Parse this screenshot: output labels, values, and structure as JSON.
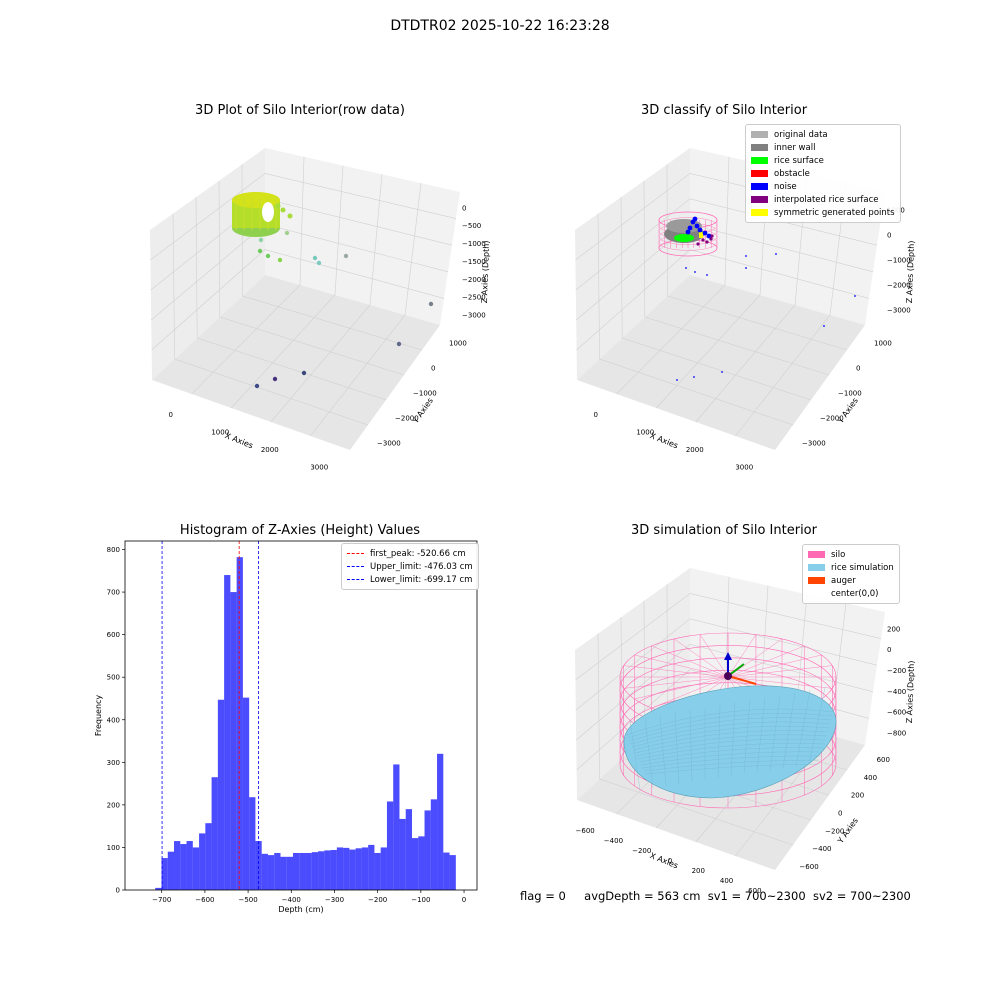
{
  "suptitle": "DTDTR02 2025-10-22 16:23:28",
  "footer": {
    "flag": "flag = 0",
    "avg_depth": "avgDepth = 563 cm",
    "sv1": "sv1 = 700~2300",
    "sv2": "sv2 = 700~2300"
  },
  "chart_data": [
    {
      "type": "scatter",
      "title": "3D Plot of Silo Interior(row data)",
      "xlabel": "X Axies",
      "ylabel": "Y Axies",
      "zlabel": "Z Axies (Depth)",
      "x_ticks": [
        "0",
        "1000",
        "2000",
        "3000"
      ],
      "y_ticks": [
        "1000",
        "0",
        "−1000",
        "−2000",
        "−3000"
      ],
      "z_ticks": [
        "0",
        "−500",
        "−1000",
        "−1500",
        "−2000",
        "−2500",
        "−3000"
      ],
      "colormap": "viridis",
      "cluster_colors": [
        "#d4e21a",
        "#b5de2b",
        "#7ad151",
        "#ffffff"
      ],
      "outlier_points": [
        {
          "color": "#a2d08d"
        },
        {
          "color": "#8fd3a6"
        },
        {
          "color": "#6ccd5a"
        },
        {
          "color": "#6ccd5a"
        },
        {
          "color": "#86d549"
        },
        {
          "color": "#77c9bc"
        },
        {
          "color": "#7fc9c0"
        },
        {
          "color": "#9aa9a4"
        },
        {
          "color": "#78808f"
        },
        {
          "color": "#5d6a8a"
        },
        {
          "color": "#3b4a7c"
        },
        {
          "color": "#46327e"
        },
        {
          "color": "#3e4a89"
        }
      ]
    },
    {
      "type": "scatter",
      "title": "3D classify of Silo Interior",
      "xlabel": "X Axies",
      "ylabel": "Y Axies",
      "zlabel": "Z Axies (Depth)",
      "x_ticks": [
        "0",
        "1000",
        "2000",
        "3000"
      ],
      "y_ticks": [
        "1000",
        "0",
        "−1000",
        "−2000",
        "−3000"
      ],
      "z_ticks": [
        "1000",
        "0",
        "−1000",
        "−2000",
        "−3000"
      ],
      "legend": [
        {
          "label": "original data",
          "color": "#b0b0b0"
        },
        {
          "label": "inner wall",
          "color": "#808080"
        },
        {
          "label": "rice surface",
          "color": "#00ff00"
        },
        {
          "label": "obstacle",
          "color": "#ff0000"
        },
        {
          "label": "noise",
          "color": "#0000ff"
        },
        {
          "label": "interpolated rice surface",
          "color": "#800080"
        },
        {
          "label": "symmetric generated points",
          "color": "#ffff00"
        }
      ],
      "legend_placement": "upper right",
      "shell_color": "#ff69b4"
    },
    {
      "type": "bar",
      "title": "Histogram of Z-Axies (Height) Values",
      "xlabel": "Depth (cm)",
      "ylabel": "Frequency",
      "xlim": [
        -785,
        30
      ],
      "ylim": [
        0,
        820
      ],
      "x_ticks": [
        -700,
        -600,
        -500,
        -400,
        -300,
        -200,
        -100,
        0
      ],
      "y_ticks": [
        0,
        100,
        200,
        300,
        400,
        500,
        600,
        700,
        800
      ],
      "bin_start": -715,
      "bin_width": 14.5,
      "bar_color": "#0000ff",
      "values": [
        5,
        75,
        90,
        115,
        108,
        115,
        100,
        133,
        157,
        265,
        447,
        740,
        700,
        782,
        452,
        218,
        115,
        85,
        82,
        87,
        78,
        78,
        87,
        87,
        87,
        89,
        91,
        93,
        94,
        100,
        99,
        95,
        98,
        100,
        106,
        87,
        100,
        208,
        295,
        167,
        190,
        122,
        126,
        187,
        213,
        320,
        88,
        82
      ],
      "lines": [
        {
          "label": "first_peak: -520.66 cm",
          "x": -520.66,
          "color": "#ff0000"
        },
        {
          "label": "Upper_limit: -476.03 cm",
          "x": -476.03,
          "color": "#0000ff"
        },
        {
          "label": "Lower_limit: -699.17 cm",
          "x": -699.17,
          "color": "#0000ff"
        }
      ],
      "legend_placement": "upper right"
    },
    {
      "type": "surface",
      "title": "3D simulation of Silo Interior",
      "xlabel": "X Axies",
      "ylabel": "Y Axies",
      "zlabel": "Z Axies (Depth)",
      "x_ticks": [
        "−600",
        "−400",
        "−200",
        "0",
        "200",
        "400",
        "600"
      ],
      "y_ticks": [
        "600",
        "400",
        "200",
        "0",
        "−200",
        "−400",
        "−600"
      ],
      "z_ticks": [
        "200",
        "0",
        "−200",
        "−400",
        "−600",
        "−800"
      ],
      "legend": [
        {
          "label": "silo",
          "color": "#ff69b4"
        },
        {
          "label": "rice simulation",
          "color": "#87ceeb"
        },
        {
          "label": "auger",
          "color": "#ff4500"
        },
        {
          "label": "center(0,0)",
          "color": ""
        }
      ],
      "legend_placement": "upper right"
    }
  ]
}
